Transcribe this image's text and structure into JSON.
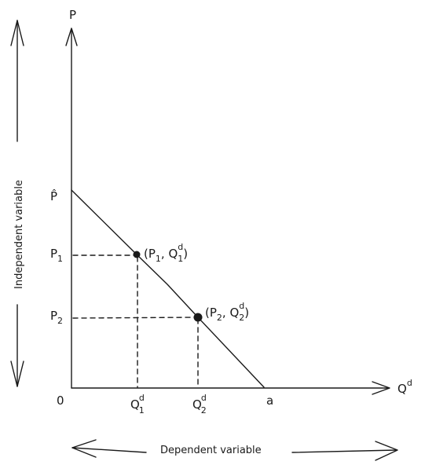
{
  "axes": {
    "y_label": "P",
    "x_label": "Q",
    "x_label_sup": "d",
    "origin": "0"
  },
  "y_ticks": {
    "p_hat": "P̂",
    "p1_base": "P",
    "p1_sub": "1",
    "p2_base": "P",
    "p2_sub": "2"
  },
  "x_ticks": {
    "q1_base": "Q",
    "q1_sup": "d",
    "q1_sub": "1",
    "q2_base": "Q",
    "q2_sup": "d",
    "q2_sub": "2",
    "a": "a"
  },
  "points": {
    "point1": {
      "open": "(P",
      "p_sub": "1",
      "sep": ", Q",
      "q_sup": "d",
      "q_sub": "1",
      "close": ")"
    },
    "point2": {
      "open": "(P",
      "p_sub": "2",
      "sep": ", Q",
      "q_sup": "d",
      "q_sub": "2",
      "close": ")"
    }
  },
  "captions": {
    "independent": "Independent variable",
    "dependent": "Dependent variable"
  }
}
